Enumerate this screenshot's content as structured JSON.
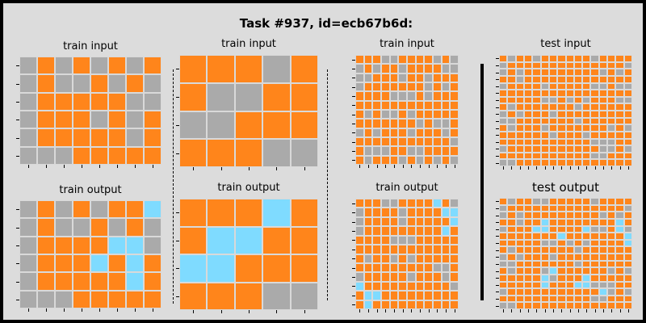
{
  "title": "Task #937, id=ecb67b6d:",
  "palette": {
    "0": "#aaaaaa",
    "1": "#ff851b",
    "2": "#7fdbff"
  },
  "panels": [
    {
      "label": "train input",
      "grid": [
        "01010101",
        "01001010",
        "01111100",
        "01110101",
        "01111101",
        "00011111"
      ]
    },
    {
      "label": "train output",
      "grid": [
        "01010112",
        "01001010",
        "01111220",
        "01112121",
        "01111121",
        "00011111"
      ]
    },
    {
      "label": "train input",
      "grid": [
        "11101",
        "10011",
        "00111",
        "11100"
      ]
    },
    {
      "label": "train output",
      "grid": [
        "11121",
        "12211",
        "22111",
        "11100"
      ]
    },
    {
      "label": "train input",
      "grid": [
        "111001111010",
        "010110111100",
        "001110110111",
        "011111110101",
        "111100010111",
        "111111111111",
        "101001011111",
        "111111101001",
        "010111011101",
        "111111111110",
        "100011001111",
        "101110101010"
      ]
    },
    {
      "label": "train output",
      "grid": [
        "111001111210",
        "011110111122",
        "011110111112",
        "011111111121",
        "111100011111",
        "111111111111",
        "101101011111",
        "111111111001",
        "011111011101",
        "211111111110",
        "122111111111",
        "121111111111"
      ]
    },
    {
      "label": "test input",
      "grid": [
        "1011011111101111",
        "0111111111111110",
        "0101111111110101",
        "1101111111111111",
        "0111101111100100",
        "1111111111111111",
        "1111100101011100",
        "1011111110111111",
        "0101110111111111",
        "0011111110111111",
        "1011101111111010",
        "1111110111011111",
        "1111111111100011",
        "0111111111110010",
        "1111111111100111",
        "0011111111111111"
      ]
    },
    {
      "label": "test output",
      "grid": [
        "1011001111101111",
        "0111111111111110",
        "0101111111110101",
        "1101121111111121",
        "0111221111200120",
        "1111111211111112",
        "1111100101011112",
        "1011111110111111",
        "0101110111111111",
        "0011111110111111",
        "1011102111111010",
        "1111120111211111",
        "1111121112200011",
        "0111111111112010",
        "1111111111100111",
        "0011111111111111"
      ]
    }
  ]
}
